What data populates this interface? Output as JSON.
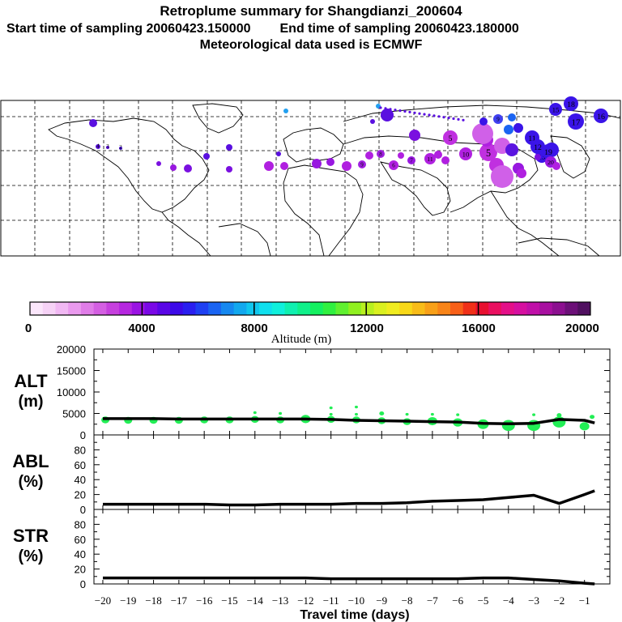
{
  "header": {
    "title": "Retroplume summary for Shangdianzi_200604",
    "start_time": "Start time of sampling 20060423.150000",
    "end_time": "End time of sampling 20060423.180000",
    "met_data": "Meteorological data used is ECMWF"
  },
  "colorbar": {
    "tick_labels": [
      "0",
      "4000",
      "8000",
      "12000",
      "16000",
      "20000"
    ],
    "label": "Altitude (m)",
    "colors": [
      "#fbe6fb",
      "#f6d2f6",
      "#f1b8f3",
      "#ea9aee",
      "#e07de8",
      "#d45fe2",
      "#c640de",
      "#b627e0",
      "#9a13e3",
      "#7a08e6",
      "#5a06e6",
      "#3c0ae8",
      "#2a1ff0",
      "#1e40f2",
      "#1a64f2",
      "#1688f0",
      "#12a8ee",
      "#10c6ee",
      "#10e0ee",
      "#10f0dc",
      "#10f0b0",
      "#10f08a",
      "#14f060",
      "#30f040",
      "#60f030",
      "#90f020",
      "#b8f020",
      "#daf020",
      "#f0ec20",
      "#f8d818",
      "#f8bc18",
      "#f8a018",
      "#f88418",
      "#f86018",
      "#f03018",
      "#e81030",
      "#ea1060",
      "#e41088",
      "#d610a0",
      "#c010a8",
      "#a810a0",
      "#8c1090",
      "#6c1078",
      "#501060"
    ]
  },
  "map_markers": [
    {
      "n": "2",
      "c": "#4a14d8",
      "r": 2
    },
    {
      "n": "3",
      "c": "#5a0ee0",
      "r": 2
    },
    {
      "n": "4",
      "c": "#5a10e0",
      "r": 3
    },
    {
      "n": "5",
      "c": "#c030e0",
      "r": 11
    },
    {
      "n": "5",
      "c": "#c030e0",
      "r": 9
    },
    {
      "n": "5",
      "c": "#b020e0",
      "r": 8
    },
    {
      "n": "6",
      "c": "#b020e0",
      "r": 6
    },
    {
      "n": "7",
      "c": "#9818e0",
      "r": 5
    },
    {
      "n": "8",
      "c": "#a020e0",
      "r": 5
    },
    {
      "n": "9",
      "c": "#4040f0",
      "r": 6
    },
    {
      "n": "9",
      "c": "#a020e0",
      "r": 5
    },
    {
      "n": "10",
      "c": "#b020e0",
      "r": 8
    },
    {
      "n": "11",
      "c": "#3a14e8",
      "r": 9
    },
    {
      "n": "11",
      "c": "#b020e0",
      "r": 7
    },
    {
      "n": "12",
      "c": "#3a14e8",
      "r": 9
    },
    {
      "n": "13",
      "c": "#3a14e8",
      "r": 8
    },
    {
      "n": "14",
      "c": "#3a14e8",
      "r": 9
    },
    {
      "n": "15",
      "c": "#3a14e8",
      "r": 8
    },
    {
      "n": "16",
      "c": "#3a14e8",
      "r": 9
    },
    {
      "n": "17",
      "c": "#3a14e8",
      "r": 10
    },
    {
      "n": "18",
      "c": "#3a14e8",
      "r": 9
    },
    {
      "n": "19",
      "c": "#3a14e8",
      "r": 9
    },
    {
      "n": "20",
      "c": "#9818e0",
      "r": 7
    }
  ],
  "chart_data": [
    {
      "type": "line",
      "panel": "ALT",
      "ylabel_line1": "ALT",
      "ylabel_line2": "(m)",
      "ylim": [
        0,
        20000
      ],
      "yticks": [
        0,
        5000,
        10000,
        15000,
        20000
      ],
      "xlabel": "",
      "x": [
        -20,
        -19,
        -18,
        -17,
        -16,
        -15,
        -14,
        -13,
        -12,
        -11,
        -10,
        -9,
        -8,
        -7,
        -6,
        -5,
        -4,
        -3,
        -2,
        -1,
        -0.6
      ],
      "series": [
        {
          "name": "mean altitude",
          "color": "#000000",
          "values": [
            3800,
            3800,
            3800,
            3700,
            3700,
            3700,
            3700,
            3700,
            3700,
            3600,
            3400,
            3300,
            3200,
            3100,
            3000,
            2700,
            2600,
            2700,
            3600,
            3400,
            2800
          ]
        }
      ],
      "scatter": {
        "color": "#22ee55",
        "points": [
          {
            "x": -19.9,
            "y": 3500,
            "s": 5
          },
          {
            "x": -19.0,
            "y": 3400,
            "s": 5
          },
          {
            "x": -18.0,
            "y": 3400,
            "s": 5
          },
          {
            "x": -17.0,
            "y": 3400,
            "s": 5
          },
          {
            "x": -16.0,
            "y": 3500,
            "s": 5
          },
          {
            "x": -15.0,
            "y": 3500,
            "s": 5
          },
          {
            "x": -14.0,
            "y": 3600,
            "s": 5
          },
          {
            "x": -14.0,
            "y": 5200,
            "s": 2
          },
          {
            "x": -13.0,
            "y": 3500,
            "s": 5
          },
          {
            "x": -13.0,
            "y": 5000,
            "s": 2
          },
          {
            "x": -12.0,
            "y": 3700,
            "s": 6
          },
          {
            "x": -11.0,
            "y": 3600,
            "s": 5
          },
          {
            "x": -11.0,
            "y": 4800,
            "s": 2
          },
          {
            "x": -11.0,
            "y": 6300,
            "s": 2
          },
          {
            "x": -10.0,
            "y": 3500,
            "s": 5
          },
          {
            "x": -10.0,
            "y": 4800,
            "s": 2
          },
          {
            "x": -10.0,
            "y": 6500,
            "s": 2
          },
          {
            "x": -9.0,
            "y": 3300,
            "s": 5
          },
          {
            "x": -9.0,
            "y": 5000,
            "s": 3
          },
          {
            "x": -8.0,
            "y": 3100,
            "s": 5
          },
          {
            "x": -8.0,
            "y": 4800,
            "s": 2
          },
          {
            "x": -7.0,
            "y": 3200,
            "s": 6
          },
          {
            "x": -7.0,
            "y": 4800,
            "s": 2
          },
          {
            "x": -6.0,
            "y": 2900,
            "s": 6
          },
          {
            "x": -6.0,
            "y": 4700,
            "s": 2
          },
          {
            "x": -5.0,
            "y": 2500,
            "s": 7
          },
          {
            "x": -4.0,
            "y": 2200,
            "s": 8
          },
          {
            "x": -3.0,
            "y": 2200,
            "s": 8
          },
          {
            "x": -3.0,
            "y": 4700,
            "s": 2
          },
          {
            "x": -2.0,
            "y": 3000,
            "s": 8
          },
          {
            "x": -2.0,
            "y": 4600,
            "s": 3
          },
          {
            "x": -1.0,
            "y": 2000,
            "s": 6
          },
          {
            "x": -0.7,
            "y": 4200,
            "s": 3
          }
        ]
      }
    },
    {
      "type": "line",
      "panel": "ABL",
      "ylabel_line1": "ABL",
      "ylabel_line2": "(%)",
      "ylim": [
        0,
        100
      ],
      "yticks": [
        0,
        20,
        40,
        60,
        80
      ],
      "x": [
        -20,
        -19,
        -18,
        -17,
        -16,
        -15,
        -14,
        -13,
        -12,
        -11,
        -10,
        -9,
        -8,
        -7,
        -6,
        -5,
        -4,
        -3,
        -2,
        -1,
        -0.6
      ],
      "series": [
        {
          "name": "ABL fraction",
          "color": "#000000",
          "values": [
            7,
            7,
            7,
            7,
            7,
            6,
            6,
            7,
            7,
            7,
            8,
            8,
            9,
            11,
            12,
            13,
            16,
            19,
            8,
            20,
            25
          ]
        }
      ]
    },
    {
      "type": "line",
      "panel": "STR",
      "ylabel_line1": "STR",
      "ylabel_line2": "(%)",
      "ylim": [
        0,
        100
      ],
      "yticks": [
        0,
        20,
        40,
        60,
        80
      ],
      "xlabel": "Travel time (days)",
      "xticks": [
        -20,
        -19,
        -18,
        -17,
        -16,
        -15,
        -14,
        -13,
        -12,
        -11,
        -10,
        -9,
        -8,
        -7,
        -6,
        -5,
        -4,
        -3,
        -2,
        -1
      ],
      "xtick_labels": [
        "−20",
        "−19",
        "−18",
        "−17",
        "−16",
        "−15",
        "−14",
        "−13",
        "−12",
        "−11",
        "−10",
        "−9",
        "−8",
        "−7",
        "−6",
        "−5",
        "−4",
        "−3",
        "−2",
        "−1"
      ],
      "x": [
        -20,
        -19,
        -18,
        -17,
        -16,
        -15,
        -14,
        -13,
        -12,
        -11,
        -10,
        -9,
        -8,
        -7,
        -6,
        -5,
        -4,
        -3,
        -2,
        -1,
        -0.6
      ],
      "series": [
        {
          "name": "stratospheric fraction",
          "color": "#000000",
          "values": [
            8,
            8,
            8,
            8,
            8,
            8,
            8,
            8,
            8,
            7,
            7,
            7,
            7,
            7,
            7,
            8,
            8,
            6,
            4,
            1,
            0
          ]
        }
      ]
    }
  ]
}
